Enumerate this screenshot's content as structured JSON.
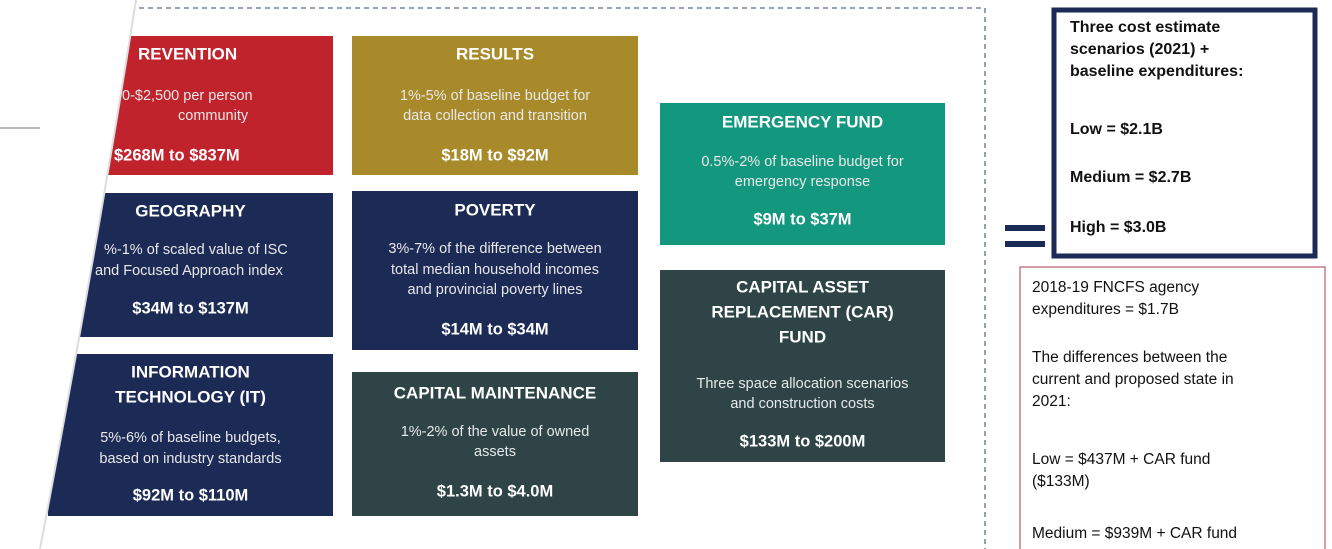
{
  "boxes": [
    {
      "title": [
        "REVENTION"
      ],
      "description": [
        "0-$2,500 per person",
        "community"
      ],
      "amount": "$268M to $837M"
    },
    {
      "title": [
        "GEOGRAPHY"
      ],
      "description": [
        "%-1% of scaled value of ISC",
        "and Focused Approach index"
      ],
      "amount": "$34M to $137M"
    },
    {
      "title": [
        "INFORMATION",
        "TECHNOLOGY (IT)"
      ],
      "description": [
        "5%-6% of baseline budgets,",
        "based on industry standards"
      ],
      "amount": "$92M to $110M"
    },
    {
      "title": [
        "RESULTS"
      ],
      "description": [
        "1%-5% of baseline budget for",
        "data collection and transition"
      ],
      "amount": "$18M to $92M"
    },
    {
      "title": [
        "POVERTY"
      ],
      "description": [
        "3%-7% of the difference between",
        "total median household incomes",
        "and provincial poverty lines"
      ],
      "amount": "$14M to $34M"
    },
    {
      "title": [
        "CAPITAL MAINTENANCE"
      ],
      "description": [
        "1%-2% of the value of owned",
        "assets"
      ],
      "amount": "$1.3M to $4.0M"
    },
    {
      "title": [
        "EMERGENCY FUND"
      ],
      "description": [
        "0.5%-2% of baseline budget for",
        "emergency response"
      ],
      "amount": "$9M to $37M"
    },
    {
      "title": [
        "CAPITAL ASSET",
        "REPLACEMENT (CAR)",
        "FUND"
      ],
      "description": [
        "Three space allocation scenarios",
        "and construction costs"
      ],
      "amount": "$133M to $200M"
    }
  ],
  "scenarios": {
    "heading": [
      "Three cost estimate",
      "scenarios (2021) +",
      "baseline expenditures:"
    ],
    "items": [
      "Low = $2.1B",
      "Medium = $2.7B",
      "High = $3.0B"
    ]
  },
  "baseline": {
    "lines": [
      "2018-19 FNCFS agency",
      "expenditures = $1.7B",
      "The differences between the",
      "current and proposed state in",
      "2021:",
      "Low = $437M + CAR fund",
      "($133M)",
      "Medium = $939M + CAR fund"
    ]
  }
}
